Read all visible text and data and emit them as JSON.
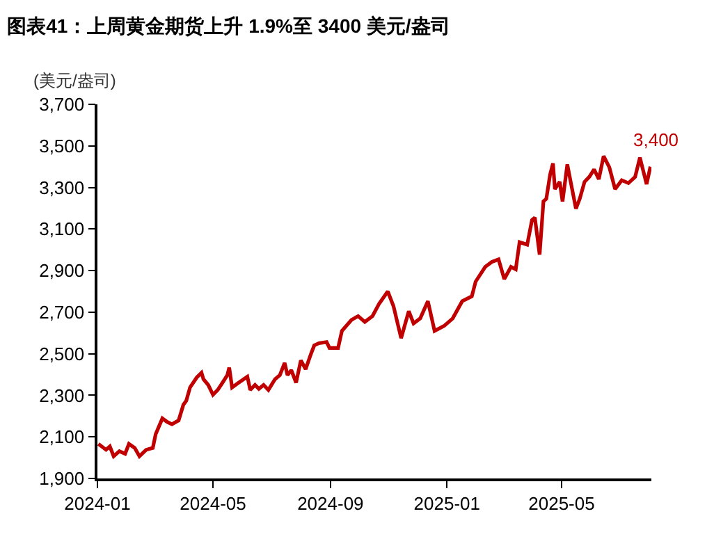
{
  "chart_data": {
    "type": "line",
    "title": "图表41：上周黄金期货上升 1.9%至 3400 美元/盎司",
    "ylabel": "(美元/盎司)",
    "x": [
      "2024-01-02",
      "2024-01-10",
      "2024-01-14",
      "2024-01-18",
      "2024-01-24",
      "2024-01-30",
      "2024-02-03",
      "2024-02-09",
      "2024-02-14",
      "2024-02-21",
      "2024-02-28",
      "2024-03-02",
      "2024-03-09",
      "2024-03-14",
      "2024-03-19",
      "2024-03-26",
      "2024-03-31",
      "2024-04-03",
      "2024-04-07",
      "2024-04-14",
      "2024-04-19",
      "2024-04-21",
      "2024-04-26",
      "2024-05-01",
      "2024-05-06",
      "2024-05-11",
      "2024-05-16",
      "2024-05-18",
      "2024-05-21",
      "2024-05-28",
      "2024-06-01",
      "2024-06-06",
      "2024-06-09",
      "2024-06-14",
      "2024-06-18",
      "2024-06-23",
      "2024-06-28",
      "2024-07-05",
      "2024-07-10",
      "2024-07-15",
      "2024-07-18",
      "2024-07-22",
      "2024-07-27",
      "2024-08-01",
      "2024-08-06",
      "2024-08-11",
      "2024-08-15",
      "2024-08-20",
      "2024-08-28",
      "2024-08-31",
      "2024-09-09",
      "2024-09-13",
      "2024-09-23",
      "2024-09-30",
      "2024-10-07",
      "2024-10-15",
      "2024-10-22",
      "2024-10-31",
      "2024-11-06",
      "2024-11-14",
      "2024-11-22",
      "2024-11-27",
      "2024-12-04",
      "2024-12-12",
      "2024-12-19",
      "2024-12-29",
      "2025-01-07",
      "2025-01-17",
      "2025-01-27",
      "2025-01-31",
      "2025-02-10",
      "2025-02-17",
      "2025-02-24",
      "2025-03-02",
      "2025-03-09",
      "2025-03-14",
      "2025-03-18",
      "2025-03-26",
      "2025-03-31",
      "2025-04-03",
      "2025-04-08",
      "2025-04-12",
      "2025-04-15",
      "2025-04-19",
      "2025-04-22",
      "2025-04-24",
      "2025-04-29",
      "2025-05-02",
      "2025-05-07",
      "2025-05-11",
      "2025-05-16",
      "2025-05-20",
      "2025-05-25",
      "2025-05-30",
      "2025-06-04",
      "2025-06-09",
      "2025-06-14",
      "2025-06-20",
      "2025-06-26",
      "2025-07-03",
      "2025-07-10",
      "2025-07-17",
      "2025-07-22",
      "2025-07-29",
      "2025-08-02"
    ],
    "series": [
      {
        "color": "#c00000",
        "values": [
          2066,
          2038,
          2054,
          2007,
          2031,
          2019,
          2066,
          2047,
          2007,
          2038,
          2047,
          2113,
          2189,
          2172,
          2161,
          2179,
          2255,
          2274,
          2338,
          2386,
          2409,
          2378,
          2350,
          2303,
          2326,
          2361,
          2397,
          2433,
          2338,
          2361,
          2374,
          2390,
          2326,
          2350,
          2331,
          2350,
          2326,
          2378,
          2397,
          2456,
          2397,
          2421,
          2361,
          2468,
          2426,
          2492,
          2540,
          2551,
          2556,
          2528,
          2528,
          2610,
          2663,
          2681,
          2653,
          2681,
          2741,
          2800,
          2729,
          2575,
          2705,
          2646,
          2670,
          2753,
          2610,
          2634,
          2670,
          2753,
          2776,
          2847,
          2918,
          2942,
          2954,
          2859,
          2918,
          2906,
          3037,
          3025,
          3143,
          3155,
          2977,
          3233,
          3245,
          3363,
          3416,
          3292,
          3327,
          3233,
          3411,
          3316,
          3198,
          3245,
          3327,
          3351,
          3387,
          3340,
          3451,
          3397,
          3292,
          3335,
          3321,
          3351,
          3444,
          3316,
          3400
        ]
      }
    ],
    "annotations": [
      {
        "text": "3,400",
        "x": "2025-08-02",
        "y": 3400
      }
    ],
    "xlim": [
      "2024-01-01",
      "2025-08-03"
    ],
    "xticks": [
      {
        "value": "2024-01-01",
        "label": "2024-01"
      },
      {
        "value": "2024-05-01",
        "label": "2024-05"
      },
      {
        "value": "2024-09-01",
        "label": "2024-09"
      },
      {
        "value": "2025-01-01",
        "label": "2025-01"
      },
      {
        "value": "2025-05-01",
        "label": "2025-05"
      }
    ],
    "ylim": [
      1900,
      3700
    ],
    "yticks": [
      {
        "value": 1900,
        "label": "1,900"
      },
      {
        "value": 2100,
        "label": "2,100"
      },
      {
        "value": 2300,
        "label": "2,300"
      },
      {
        "value": 2500,
        "label": "2,500"
      },
      {
        "value": 2700,
        "label": "2,700"
      },
      {
        "value": 2900,
        "label": "2,900"
      },
      {
        "value": 3100,
        "label": "3,100"
      },
      {
        "value": 3300,
        "label": "3,300"
      },
      {
        "value": 3500,
        "label": "3,500"
      },
      {
        "value": 3700,
        "label": "3,700"
      }
    ],
    "marker": "none",
    "line_style": "solid"
  }
}
